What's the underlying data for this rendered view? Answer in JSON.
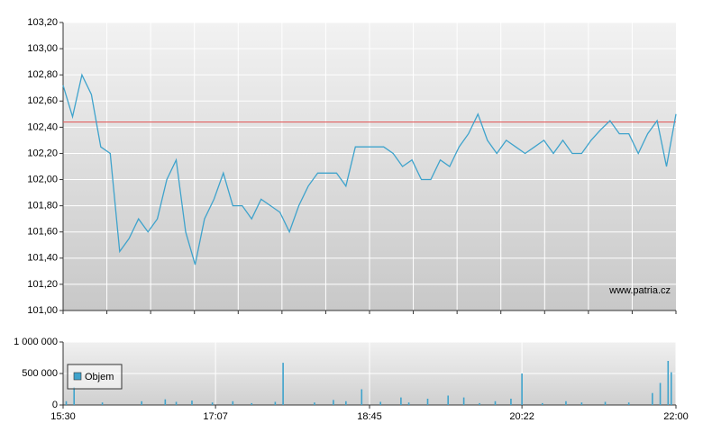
{
  "chart_data": [
    {
      "type": "line",
      "xlim": [
        "15:30",
        "22:00"
      ],
      "x": [
        "15:30",
        "15:36",
        "15:42",
        "15:48",
        "15:54",
        "16:00",
        "16:06",
        "16:12",
        "16:18",
        "16:24",
        "16:30",
        "16:36",
        "16:42",
        "16:48",
        "16:54",
        "17:00",
        "17:06",
        "17:12",
        "17:18",
        "17:24",
        "17:30",
        "17:36",
        "17:42",
        "17:48",
        "17:54",
        "18:00",
        "18:06",
        "18:12",
        "18:18",
        "18:24",
        "18:30",
        "18:36",
        "18:42",
        "18:48",
        "18:54",
        "19:00",
        "19:06",
        "19:12",
        "19:18",
        "19:24",
        "19:30",
        "19:36",
        "19:42",
        "19:48",
        "19:54",
        "20:00",
        "20:06",
        "20:12",
        "20:18",
        "20:24",
        "20:30",
        "20:36",
        "20:42",
        "20:48",
        "20:54",
        "21:00",
        "21:06",
        "21:12",
        "21:18",
        "21:24",
        "21:30",
        "21:36",
        "21:42",
        "21:48",
        "21:54",
        "22:00"
      ],
      "series": [
        {
          "color": "#3fa3cc",
          "values": [
            102.72,
            102.48,
            102.8,
            102.65,
            102.25,
            102.2,
            101.45,
            101.55,
            101.7,
            101.6,
            101.7,
            102.0,
            102.15,
            101.6,
            101.35,
            101.7,
            101.85,
            102.05,
            101.8,
            101.8,
            101.7,
            101.85,
            101.8,
            101.75,
            101.6,
            101.8,
            101.95,
            102.05,
            102.05,
            102.05,
            101.95,
            102.25,
            102.25,
            102.25,
            102.25,
            102.2,
            102.1,
            102.15,
            102.0,
            102.0,
            102.15,
            102.1,
            102.25,
            102.35,
            102.5,
            102.3,
            102.2,
            102.3,
            102.25,
            102.2,
            102.25,
            102.3,
            102.2,
            102.3,
            102.2,
            102.2,
            102.3,
            102.38,
            102.45,
            102.35,
            102.35,
            102.2,
            102.35,
            102.45,
            102.1,
            102.5
          ]
        }
      ],
      "ylim": [
        101,
        103.2
      ],
      "yticks": [
        {
          "value": 101,
          "label": "101,00"
        },
        {
          "value": 101.2,
          "label": "101,20"
        },
        {
          "value": 101.4,
          "label": "101,40"
        },
        {
          "value": 101.6,
          "label": "101,60"
        },
        {
          "value": 101.8,
          "label": "101,80"
        },
        {
          "value": 102,
          "label": "102,00"
        },
        {
          "value": 102.2,
          "label": "102,20"
        },
        {
          "value": 102.4,
          "label": "102,40"
        },
        {
          "value": 102.6,
          "label": "102,60"
        },
        {
          "value": 102.8,
          "label": "102,80"
        },
        {
          "value": 103,
          "label": "103,00"
        },
        {
          "value": 103.2,
          "label": "103,20"
        }
      ],
      "reference_line": {
        "value": 102.44,
        "color": "#e06060"
      },
      "annotation": "www.patria.cz",
      "grid": true
    },
    {
      "type": "bar",
      "xlim": [
        "15:30",
        "22:00"
      ],
      "xticks": [
        "15:30",
        "17:07",
        "18:45",
        "20:22",
        "22:00"
      ],
      "x": [
        "15:32",
        "15:37",
        "15:55",
        "16:20",
        "16:35",
        "16:42",
        "16:52",
        "17:05",
        "17:18",
        "17:30",
        "17:45",
        "17:50",
        "18:10",
        "18:22",
        "18:30",
        "18:40",
        "18:52",
        "19:05",
        "19:10",
        "19:22",
        "19:35",
        "19:45",
        "19:55",
        "20:05",
        "20:15",
        "20:22",
        "20:35",
        "20:50",
        "21:00",
        "21:15",
        "21:30",
        "21:45",
        "21:50",
        "21:55",
        "21:57"
      ],
      "series": [
        {
          "name": "Objem",
          "color": "#3fa3cc",
          "values": [
            60000,
            280000,
            40000,
            60000,
            90000,
            50000,
            70000,
            40000,
            60000,
            30000,
            50000,
            670000,
            40000,
            80000,
            60000,
            250000,
            50000,
            120000,
            40000,
            100000,
            150000,
            120000,
            30000,
            60000,
            100000,
            500000,
            30000,
            60000,
            40000,
            50000,
            40000,
            190000,
            350000,
            700000,
            520000
          ]
        }
      ],
      "ylim": [
        0,
        1000000
      ],
      "yticks": [
        0,
        {
          "value": 500000,
          "label": "500 000"
        },
        {
          "value": 1000000,
          "label": "1 000 000"
        }
      ],
      "legend": "upper left",
      "grid": true
    }
  ]
}
